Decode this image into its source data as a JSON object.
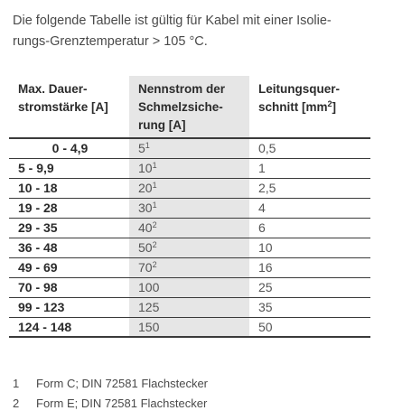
{
  "intro": {
    "line1": "Die folgende Tabelle ist gültig für Kabel mit einer Isolie-",
    "line2": "rungs-Grenztemperatur > 105 °C."
  },
  "table": {
    "headers": {
      "col1_line1": "Max. Dauer-",
      "col1_line2": "stromstärke [A]",
      "col2_line1": "Nennstrom der",
      "col2_line2": "Schmelzsiche-",
      "col2_line3": "rung [A]",
      "col3_line1": "Leitungsquer-",
      "col3_line2": "schnitt [mm",
      "col3_sup": "2",
      "col3_end": "]"
    },
    "rows": [
      {
        "max": "0 - 4,9",
        "fuse": "5",
        "fn": "1",
        "cross": "0,5"
      },
      {
        "max": "5 - 9,9",
        "fuse": "10",
        "fn": "1",
        "cross": "1"
      },
      {
        "max": "10 - 18",
        "fuse": "20",
        "fn": "1",
        "cross": "2,5"
      },
      {
        "max": "19 - 28",
        "fuse": "30",
        "fn": "1",
        "cross": "4"
      },
      {
        "max": "29 - 35",
        "fuse": "40",
        "fn": "2",
        "cross": "6"
      },
      {
        "max": "36 - 48",
        "fuse": "50",
        "fn": "2",
        "cross": "10"
      },
      {
        "max": "49 - 69",
        "fuse": "70",
        "fn": "2",
        "cross": "16"
      },
      {
        "max": "70 - 98",
        "fuse": "100",
        "fn": "",
        "cross": "25"
      },
      {
        "max": "99 - 123",
        "fuse": "125",
        "fn": "",
        "cross": "35"
      },
      {
        "max": "124 - 148",
        "fuse": "150",
        "fn": "",
        "cross": "50"
      }
    ]
  },
  "footnotes": [
    {
      "num": "1",
      "text": "Form C; DIN 72581 Flachstecker"
    },
    {
      "num": "2",
      "text": "Form E; DIN 72581 Flachstecker"
    }
  ]
}
